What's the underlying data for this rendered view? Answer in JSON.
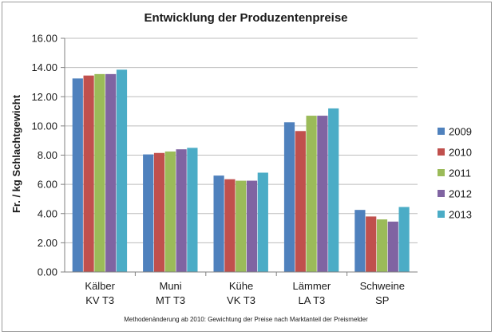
{
  "chart_data": {
    "type": "bar",
    "title": "Entwicklung der Produzentenpreise",
    "ylabel": "Fr. / kg Schlachtgewicht",
    "xlabel": "",
    "ylim": [
      0,
      16
    ],
    "yticks": [
      "0.00",
      "2.00",
      "4.00",
      "6.00",
      "8.00",
      "10.00",
      "12.00",
      "14.00",
      "16.00"
    ],
    "categories": [
      {
        "line1": "Kälber",
        "line2": "KV T3"
      },
      {
        "line1": "Muni",
        "line2": "MT T3"
      },
      {
        "line1": "Kühe",
        "line2": "VK T3"
      },
      {
        "line1": "Lämmer",
        "line2": "LA T3"
      },
      {
        "line1": "Schweine",
        "line2": "SP"
      }
    ],
    "series": [
      {
        "name": "2009",
        "color": "#4f81bd",
        "values": [
          13.25,
          8.05,
          6.6,
          10.25,
          4.25
        ]
      },
      {
        "name": "2010",
        "color": "#c0504d",
        "values": [
          13.45,
          8.15,
          6.35,
          9.65,
          3.8
        ]
      },
      {
        "name": "2011",
        "color": "#9bbb59",
        "values": [
          13.55,
          8.25,
          6.25,
          10.7,
          3.6
        ]
      },
      {
        "name": "2012",
        "color": "#8064a2",
        "values": [
          13.55,
          8.4,
          6.25,
          10.7,
          3.45
        ]
      },
      {
        "name": "2013",
        "color": "#4bacc6",
        "values": [
          13.85,
          8.5,
          6.8,
          11.2,
          4.45
        ]
      }
    ],
    "legend_position": "right",
    "grid": true,
    "footnote": "Methodenänderung ab 2010: Gewichtung der Preise nach Marktanteil der Preismelder"
  }
}
